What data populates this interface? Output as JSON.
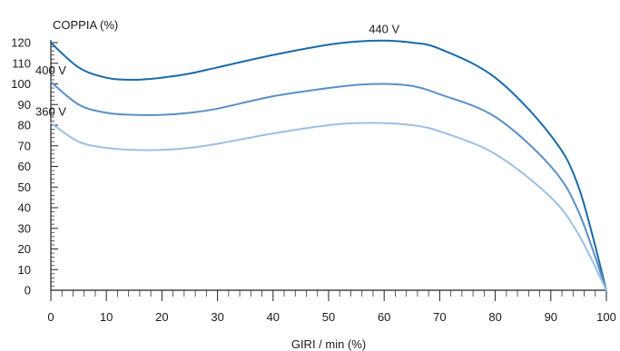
{
  "chart_data": {
    "type": "line",
    "title": "",
    "xlabel": "GIRI / min (%)",
    "ylabel": "COPPIA (%)",
    "xlim": [
      0,
      100
    ],
    "ylim": [
      0,
      120
    ],
    "x_ticks": [
      0,
      10,
      20,
      30,
      40,
      50,
      60,
      70,
      80,
      90,
      100
    ],
    "y_ticks": [
      0,
      10,
      20,
      30,
      40,
      50,
      60,
      70,
      80,
      90,
      100,
      110,
      120
    ],
    "grid": false,
    "legend": "none",
    "series": [
      {
        "name": "440 V",
        "color": "#1a6aa8",
        "x": [
          0,
          5,
          10,
          15,
          20,
          25,
          30,
          40,
          50,
          55,
          60,
          65,
          70,
          80,
          90,
          95,
          100
        ],
        "y": [
          120,
          108,
          103,
          102,
          103,
          105,
          108,
          114,
          119,
          120.5,
          121,
          120,
          117,
          103,
          75,
          50,
          0
        ]
      },
      {
        "name": "400 V",
        "color": "#5a8fc6",
        "x": [
          0,
          5,
          10,
          15,
          20,
          25,
          30,
          40,
          50,
          55,
          60,
          65,
          70,
          80,
          90,
          95,
          100
        ],
        "y": [
          101,
          90,
          86,
          85,
          85,
          86,
          88,
          94,
          98,
          99.5,
          100,
          99,
          95,
          84,
          60,
          38,
          0
        ]
      },
      {
        "name": "360 V",
        "color": "#9dbfe3",
        "x": [
          0,
          5,
          10,
          15,
          20,
          25,
          30,
          40,
          50,
          55,
          60,
          65,
          70,
          80,
          90,
          95,
          100
        ],
        "y": [
          81,
          72,
          69,
          68,
          68,
          69,
          71,
          76,
          80,
          81,
          81,
          80,
          77,
          66,
          45,
          27,
          0
        ]
      }
    ]
  }
}
